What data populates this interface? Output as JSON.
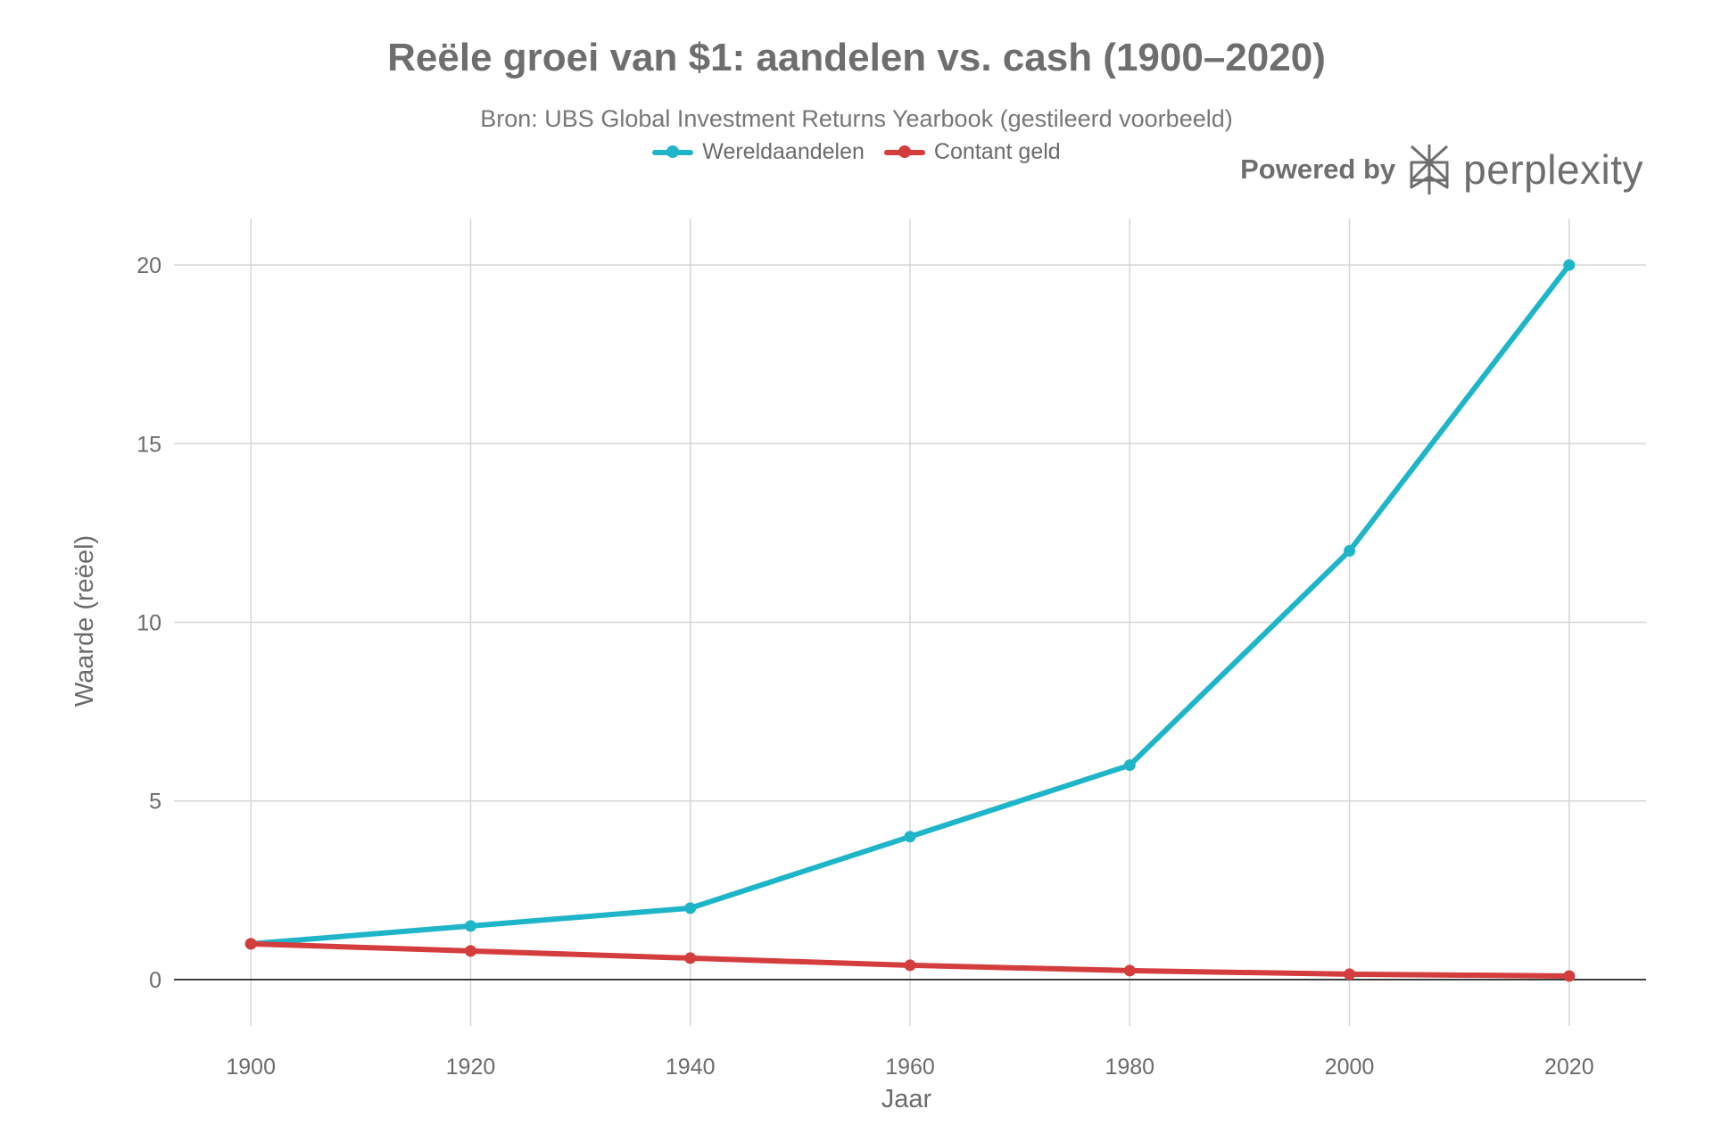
{
  "chart_data": {
    "type": "line",
    "title": "Reële groei van $1: aandelen vs. cash (1900–2020)",
    "subtitle": "Bron: UBS Global Investment Returns Yearbook (gestileerd voorbeeld)",
    "xlabel": "Jaar",
    "ylabel": "Waarde (reëel)",
    "x": [
      1900,
      1920,
      1940,
      1960,
      1980,
      2000,
      2020
    ],
    "x_ticks": [
      "1900",
      "1920",
      "1940",
      "1960",
      "1980",
      "2000",
      "2020"
    ],
    "y_ticks": [
      "0",
      "5",
      "10",
      "15",
      "20"
    ],
    "xlim": [
      1893,
      2027
    ],
    "ylim": [
      -1.3,
      21.3
    ],
    "grid": true,
    "legend_position": "top-center",
    "series": [
      {
        "name": "Wereldaandelen",
        "color": "#1fb5c9",
        "values": [
          1,
          1.5,
          2,
          4,
          6,
          12,
          20
        ]
      },
      {
        "name": "Contant geld",
        "color": "#d43d3d",
        "values": [
          1,
          0.8,
          0.6,
          0.4,
          0.25,
          0.15,
          0.1
        ]
      }
    ]
  },
  "branding": {
    "powered_by": "Powered by",
    "name": "perplexity",
    "icon": "perplexity-logo-icon"
  }
}
